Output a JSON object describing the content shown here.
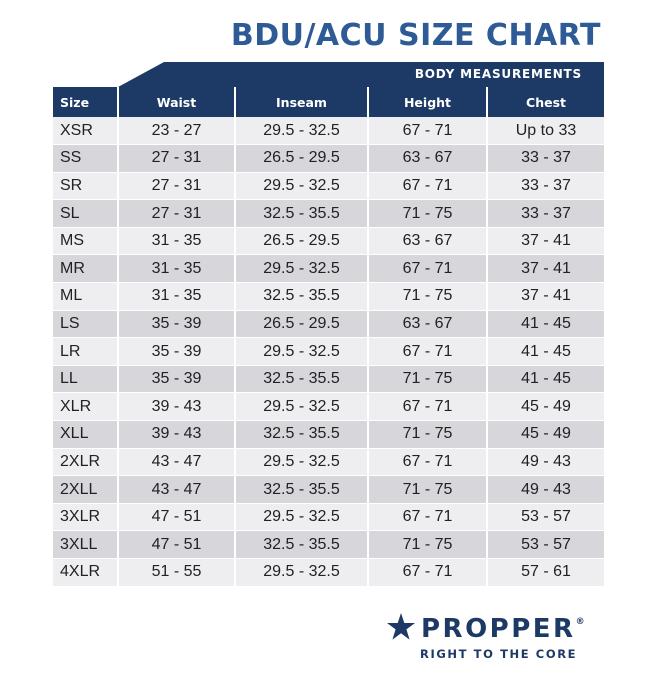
{
  "title": "BDU/ACU SIZE CHART",
  "banner": "BODY MEASUREMENTS",
  "colors": {
    "title": "#2e5b96",
    "header": "#1d3a66",
    "row_light": "#eeeef0",
    "row_dark": "#d6d6db"
  },
  "table": {
    "columns": [
      "Size",
      "Waist",
      "Inseam",
      "Height",
      "Chest"
    ],
    "rows": [
      [
        "XSR",
        "23 - 27",
        "29.5 - 32.5",
        "67 - 71",
        "Up to 33"
      ],
      [
        "SS",
        "27 - 31",
        "26.5 - 29.5",
        "63 - 67",
        "33 - 37"
      ],
      [
        "SR",
        "27 - 31",
        "29.5 - 32.5",
        "67 - 71",
        "33 - 37"
      ],
      [
        "SL",
        "27 - 31",
        "32.5 - 35.5",
        "71 - 75",
        "33 - 37"
      ],
      [
        "MS",
        "31 - 35",
        "26.5 - 29.5",
        "63 - 67",
        "37 - 41"
      ],
      [
        "MR",
        "31 - 35",
        "29.5 - 32.5",
        "67 - 71",
        "37 - 41"
      ],
      [
        "ML",
        "31 - 35",
        "32.5 - 35.5",
        "71 - 75",
        "37 - 41"
      ],
      [
        "LS",
        "35 - 39",
        "26.5 - 29.5",
        "63 - 67",
        "41 - 45"
      ],
      [
        "LR",
        "35 - 39",
        "29.5 - 32.5",
        "67 - 71",
        "41 - 45"
      ],
      [
        "LL",
        "35 - 39",
        "32.5 - 35.5",
        "71 - 75",
        "41 - 45"
      ],
      [
        "XLR",
        "39 - 43",
        "29.5 - 32.5",
        "67 - 71",
        "45 - 49"
      ],
      [
        "XLL",
        "39 - 43",
        "32.5 - 35.5",
        "71 - 75",
        "45 - 49"
      ],
      [
        "2XLR",
        "43 - 47",
        "29.5 - 32.5",
        "67 - 71",
        "49 - 43"
      ],
      [
        "2XLL",
        "43 - 47",
        "32.5 - 35.5",
        "71 - 75",
        "49 - 43"
      ],
      [
        "3XLR",
        "47 - 51",
        "29.5 - 32.5",
        "67 - 71",
        "53 - 57"
      ],
      [
        "3XLL",
        "47 - 51",
        "32.5 - 35.5",
        "71 - 75",
        "53 - 57"
      ],
      [
        "4XLR",
        "51 - 55",
        "29.5 - 32.5",
        "67 - 71",
        "57 - 61"
      ]
    ]
  },
  "logo": {
    "icon": "star-icon",
    "name": "PROPPER",
    "trademark": "®",
    "tagline": "RIGHT TO THE CORE"
  }
}
